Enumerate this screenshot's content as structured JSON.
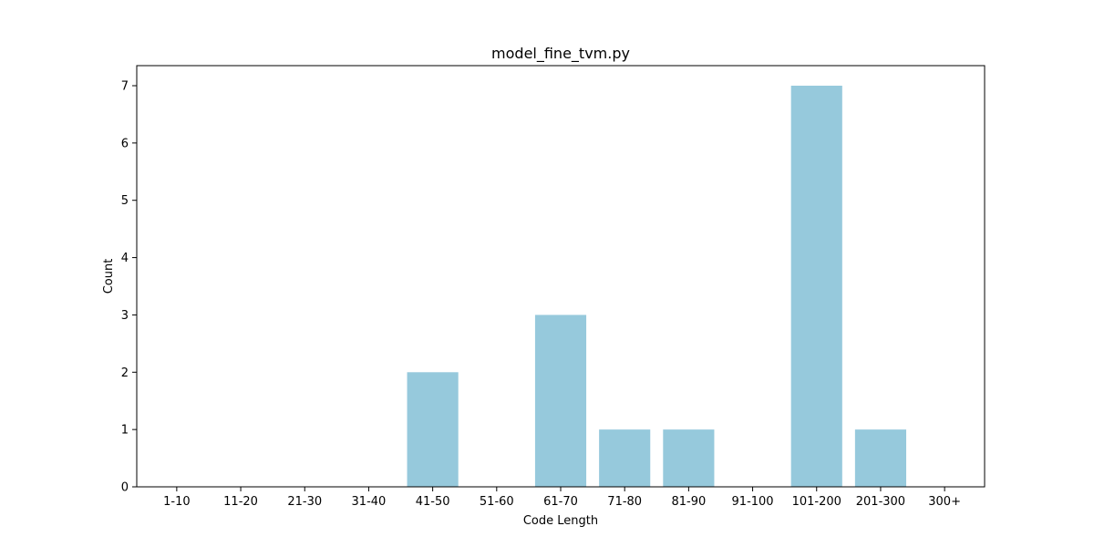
{
  "chart_data": {
    "type": "bar",
    "title": "model_fine_tvm.py",
    "xlabel": "Code Length",
    "ylabel": "Count",
    "categories": [
      "1-10",
      "11-20",
      "21-30",
      "31-40",
      "41-50",
      "51-60",
      "61-70",
      "71-80",
      "81-90",
      "91-100",
      "101-200",
      "201-300",
      "300+"
    ],
    "values": [
      0,
      0,
      0,
      0,
      2,
      0,
      3,
      1,
      1,
      0,
      7,
      1,
      0
    ],
    "ylim": [
      0,
      7.35
    ],
    "yticks": [
      0,
      1,
      2,
      3,
      4,
      5,
      6,
      7
    ],
    "bar_color": "#96c9dc",
    "grid": false,
    "legend": "none"
  }
}
